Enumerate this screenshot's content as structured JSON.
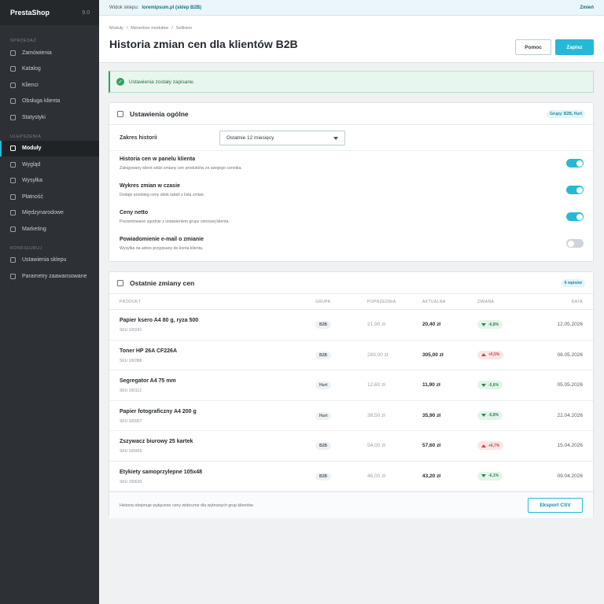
{
  "brand": {
    "name": "PrestaShop",
    "version": "9.0"
  },
  "sidebar": {
    "sections": [
      {
        "label": "SPRZEDAŻ",
        "items": [
          {
            "label": "Zamówienia",
            "active": false
          },
          {
            "label": "Katalog",
            "active": false
          },
          {
            "label": "Klienci",
            "active": false
          },
          {
            "label": "Obsługa klienta",
            "active": false
          },
          {
            "label": "Statystyki",
            "active": false
          }
        ]
      },
      {
        "label": "ULEPSZENIA",
        "items": [
          {
            "label": "Moduły",
            "active": true
          },
          {
            "label": "Wygląd",
            "active": false
          },
          {
            "label": "Wysyłka",
            "active": false
          },
          {
            "label": "Płatność",
            "active": false
          },
          {
            "label": "Międzynarodowe",
            "active": false
          },
          {
            "label": "Marketing",
            "active": false
          }
        ]
      },
      {
        "label": "KONFIGURUJ",
        "items": [
          {
            "label": "Ustawienia sklepu",
            "active": false
          },
          {
            "label": "Parametry zaawansowane",
            "active": false
          }
        ]
      }
    ]
  },
  "topbar": {
    "label": "Widok sklepu:",
    "shop": "loremipsum.pl (sklep B2B)",
    "change": "Zmień"
  },
  "header": {
    "breadcrumb": [
      "Moduły",
      "/",
      "Menedżer modułów",
      "/",
      "Sellision"
    ],
    "title": "Historia zmian cen dla klientów B2B",
    "help_label": "Pomoc",
    "save_label": "Zapisz"
  },
  "alert": {
    "text": "Ustawienia zostały zapisane."
  },
  "general": {
    "title": "Ustawienia ogólne",
    "badge": "Grupy: B2B, Hurt",
    "range_label": "Zakres historii",
    "range_value": "Ostatnie 12 miesięcy",
    "toggles": [
      {
        "title": "Historia cen w panelu klienta",
        "desc": "Zalogowany klient widzi zmiany cen produktów ze swojego cennika.",
        "on": true
      },
      {
        "title": "Wykres zmian w czasie",
        "desc": "Dodaje przebieg ceny obok tabeli z listą zmian.",
        "on": true
      },
      {
        "title": "Ceny netto",
        "desc": "Prezentowane zgodnie z ustawieniem grupy cenowej klienta.",
        "on": true
      },
      {
        "title": "Powiadomienie e-mail o zmianie",
        "desc": "Wysyłka na adres przypisany do konta klienta.",
        "on": false
      }
    ]
  },
  "changes": {
    "title": "Ostatnie zmiany cen",
    "badge": "6 wpisów",
    "columns": [
      "PRODUKT",
      "GRUPA",
      "POPRZEDNIA",
      "AKTUALNA",
      "ZMIANA",
      "DATA"
    ],
    "rows": [
      {
        "name": "Papier ksero A4 80 g, ryza 500",
        "sku": "SKU 100241",
        "group": "B2B",
        "prev": "21,90 zł",
        "curr": "20,40 zł",
        "change": "-6,8%",
        "dir": "down",
        "date": "12.05.2026"
      },
      {
        "name": "Toner HP 26A CF226A",
        "sku": "SKU 100388",
        "group": "B2B",
        "prev": "289,00 zł",
        "curr": "305,00 zł",
        "change": "+5,5%",
        "dir": "up",
        "date": "08.05.2026"
      },
      {
        "name": "Segregator A4 75 mm",
        "sku": "SKU 100112",
        "group": "Hurt",
        "prev": "12,60 zł",
        "curr": "11,90 zł",
        "change": "-5,6%",
        "dir": "down",
        "date": "05.05.2026"
      },
      {
        "name": "Papier fotograficzny A4 200 g",
        "sku": "SKU 100907",
        "group": "Hurt",
        "prev": "38,50 zł",
        "curr": "35,90 zł",
        "change": "-6,8%",
        "dir": "down",
        "date": "22.04.2026"
      },
      {
        "name": "Zszywacz biurowy 25 kartek",
        "sku": "SKU 100455",
        "group": "B2B",
        "prev": "54,00 zł",
        "curr": "57,60 zł",
        "change": "+6,7%",
        "dir": "up",
        "date": "15.04.2026"
      },
      {
        "name": "Etykiety samoprzylepne 105x48",
        "sku": "SKU 100630",
        "group": "B2B",
        "prev": "46,00 zł",
        "curr": "43,20 zł",
        "change": "-6,1%",
        "dir": "down",
        "date": "09.04.2026"
      }
    ],
    "footer_note": "Historia obejmuje wyłącznie ceny widoczne dla wybranych grup klientów.",
    "export_label": "Eksport CSV"
  },
  "colors": {
    "accent": "#25b9d7",
    "sidebar": "#2d3034",
    "success": "#35a05c",
    "danger": "#c94646"
  }
}
